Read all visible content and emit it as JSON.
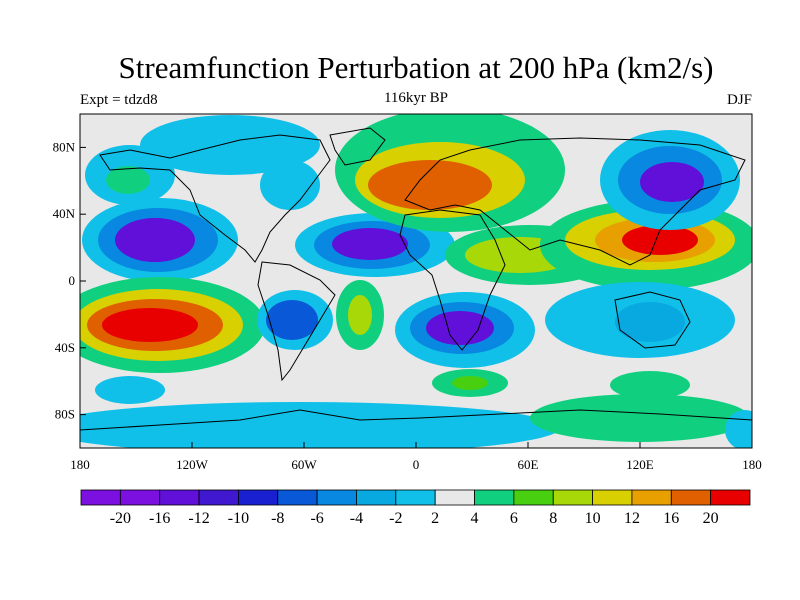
{
  "title": "Streamfunction Perturbation at 200 hPa (km2/s)",
  "left_label": "Expt = tdzd8",
  "center_label": "116kyr BP",
  "right_label": "DJF",
  "lat_ticks": [
    "80N",
    "40N",
    "0",
    "40S",
    "80S"
  ],
  "lat_values": [
    80,
    40,
    0,
    -40,
    -80
  ],
  "lon_ticks": [
    "180",
    "120W",
    "60W",
    "0",
    "60E",
    "120E",
    "180"
  ],
  "lon_values": [
    -180,
    -120,
    -60,
    0,
    60,
    120,
    180
  ],
  "colorbar": {
    "labels": [
      "-20",
      "-16",
      "-12",
      "-10",
      "-8",
      "-6",
      "-4",
      "-2",
      "2",
      "4",
      "6",
      "8",
      "10",
      "12",
      "16",
      "20"
    ],
    "colors": [
      "#7b10e0",
      "#6010d8",
      "#4018d0",
      "#1820d0",
      "#0858d8",
      "#0888e0",
      "#08a8e0",
      "#10c0e8",
      "#e8e8e8",
      "#10d080",
      "#48d010",
      "#a8d808",
      "#d8d000",
      "#e8a000",
      "#e06000",
      "#e80000"
    ]
  },
  "field_colors": {
    "background": "#e8e8e8",
    "cyan": "#10c0e8",
    "lightblue": "#08a8e0",
    "blue": "#0888e0",
    "deepblue": "#0858d8",
    "violet": "#6010d8",
    "purple": "#7b10e0",
    "green": "#10d080",
    "lime": "#48d010",
    "yellowgreen": "#a8d808",
    "yellow": "#d8d000",
    "orange": "#e8a000",
    "darkorange": "#e06000",
    "red": "#e80000"
  }
}
